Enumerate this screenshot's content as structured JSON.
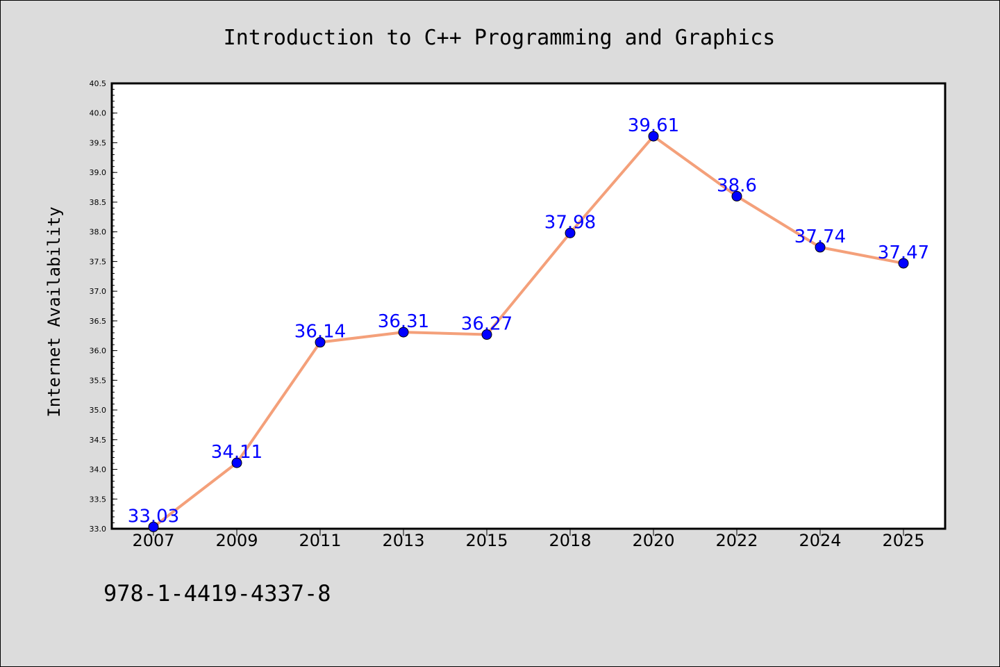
{
  "chart_data": {
    "type": "line",
    "title": "Introduction to C++ Programming and Graphics",
    "xlabel": "",
    "ylabel": "Internet Availability",
    "categories": [
      "2007",
      "2009",
      "2011",
      "2013",
      "2015",
      "2018",
      "2020",
      "2022",
      "2024",
      "2025"
    ],
    "series": [
      {
        "values": [
          33.03,
          34.11,
          36.14,
          36.31,
          36.27,
          37.98,
          39.61,
          38.6,
          37.74,
          37.47
        ],
        "data_labels": [
          "33.03",
          "34.11",
          "36.14",
          "36.31",
          "36.27",
          "37.98",
          "39.61",
          "38.6",
          "37.74",
          "37.47"
        ],
        "line_color": "#f4a07a",
        "marker_color": "#0000ff"
      }
    ],
    "ylim": [
      33.0,
      40.5
    ],
    "yticks": [
      "33.0",
      "33.5",
      "34.0",
      "34.5",
      "35.0",
      "35.5",
      "36.0",
      "36.5",
      "37.0",
      "37.5",
      "38.0",
      "38.5",
      "39.0",
      "39.5",
      "40.0",
      "40.5"
    ],
    "grid": false,
    "legend": "none",
    "annotation": "978-1-4419-4337-8"
  },
  "colors": {
    "background": "#dcdcdc",
    "plot_background": "#ffffff",
    "line": "#f4a07a",
    "marker": "#0000ff",
    "data_label": "#0000ff"
  }
}
